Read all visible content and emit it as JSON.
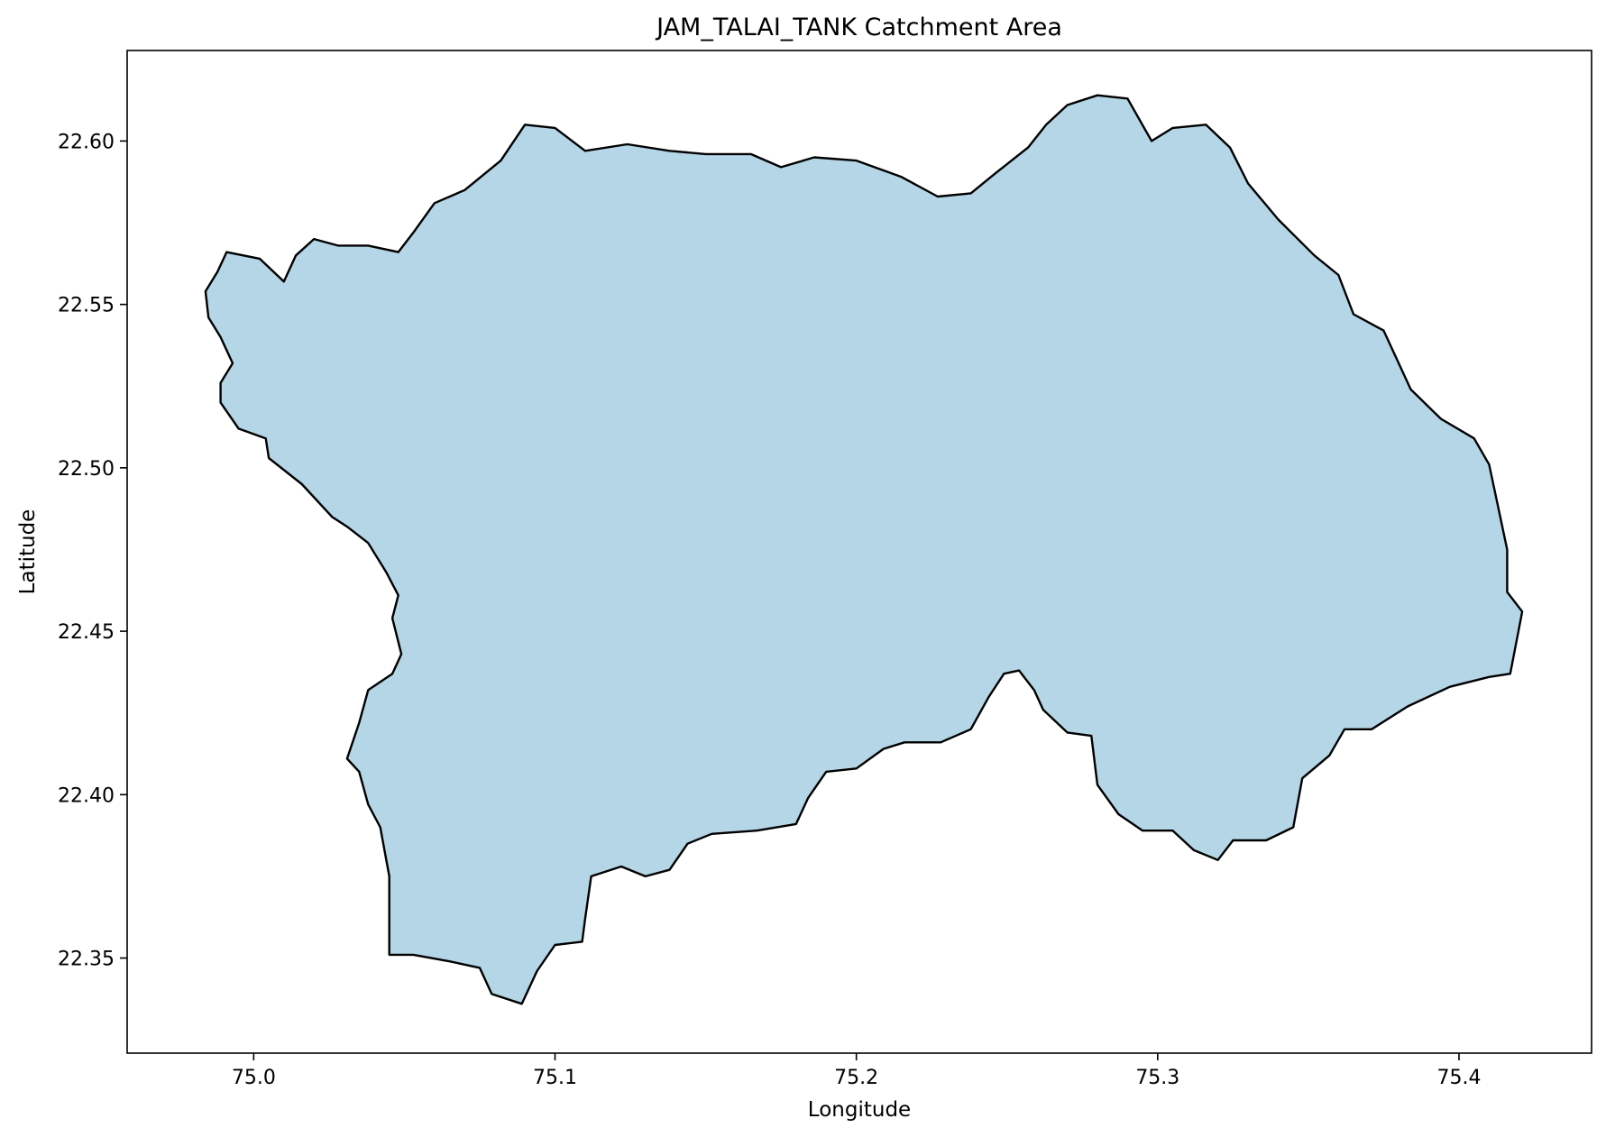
{
  "title": "JAM_TALAI_TANK Catchment Area",
  "x_axis": {
    "label": "Longitude",
    "range": [
      74.958,
      75.444
    ],
    "ticks": [
      {
        "value": 75.0,
        "label": "75.0"
      },
      {
        "value": 75.1,
        "label": "75.1"
      },
      {
        "value": 75.2,
        "label": "75.2"
      },
      {
        "value": 75.3,
        "label": "75.3"
      },
      {
        "value": 75.4,
        "label": "75.4"
      }
    ]
  },
  "y_axis": {
    "label": "Latitude",
    "range": [
      22.3209,
      22.6277
    ],
    "ticks": [
      {
        "value": 22.35,
        "label": "22.35"
      },
      {
        "value": 22.4,
        "label": "22.40"
      },
      {
        "value": 22.45,
        "label": "22.45"
      },
      {
        "value": 22.5,
        "label": "22.50"
      },
      {
        "value": 22.55,
        "label": "22.55"
      },
      {
        "value": 22.6,
        "label": "22.60"
      }
    ]
  },
  "grid": false,
  "colors": {
    "fill": "#b4d6e6",
    "outline": "#000000",
    "background": "#ffffff"
  },
  "map_data": {
    "feature": "catchment-boundary",
    "crs_units": "degrees",
    "boundary": [
      [
        74.984,
        22.554
      ],
      [
        74.988,
        22.56
      ],
      [
        74.991,
        22.566
      ],
      [
        75.002,
        22.564
      ],
      [
        75.01,
        22.557
      ],
      [
        75.014,
        22.565
      ],
      [
        75.02,
        22.57
      ],
      [
        75.028,
        22.568
      ],
      [
        75.038,
        22.568
      ],
      [
        75.048,
        22.566
      ],
      [
        75.053,
        22.572
      ],
      [
        75.06,
        22.581
      ],
      [
        75.07,
        22.585
      ],
      [
        75.082,
        22.594
      ],
      [
        75.09,
        22.605
      ],
      [
        75.1,
        22.604
      ],
      [
        75.11,
        22.597
      ],
      [
        75.124,
        22.599
      ],
      [
        75.138,
        22.597
      ],
      [
        75.15,
        22.596
      ],
      [
        75.165,
        22.596
      ],
      [
        75.175,
        22.592
      ],
      [
        75.186,
        22.595
      ],
      [
        75.2,
        22.594
      ],
      [
        75.215,
        22.589
      ],
      [
        75.227,
        22.583
      ],
      [
        75.238,
        22.584
      ],
      [
        75.246,
        22.59
      ],
      [
        75.257,
        22.598
      ],
      [
        75.263,
        22.605
      ],
      [
        75.27,
        22.611
      ],
      [
        75.28,
        22.614
      ],
      [
        75.29,
        22.613
      ],
      [
        75.298,
        22.6
      ],
      [
        75.305,
        22.604
      ],
      [
        75.316,
        22.605
      ],
      [
        75.324,
        22.598
      ],
      [
        75.33,
        22.587
      ],
      [
        75.34,
        22.576
      ],
      [
        75.352,
        22.565
      ],
      [
        75.36,
        22.559
      ],
      [
        75.365,
        22.547
      ],
      [
        75.375,
        22.542
      ],
      [
        75.384,
        22.524
      ],
      [
        75.394,
        22.515
      ],
      [
        75.405,
        22.509
      ],
      [
        75.41,
        22.501
      ],
      [
        75.413,
        22.488
      ],
      [
        75.416,
        22.475
      ],
      [
        75.416,
        22.462
      ],
      [
        75.421,
        22.456
      ],
      [
        75.417,
        22.437
      ],
      [
        75.41,
        22.436
      ],
      [
        75.397,
        22.433
      ],
      [
        75.383,
        22.427
      ],
      [
        75.371,
        22.42
      ],
      [
        75.362,
        22.42
      ],
      [
        75.357,
        22.412
      ],
      [
        75.348,
        22.405
      ],
      [
        75.345,
        22.39
      ],
      [
        75.336,
        22.386
      ],
      [
        75.325,
        22.386
      ],
      [
        75.32,
        22.38
      ],
      [
        75.312,
        22.383
      ],
      [
        75.305,
        22.389
      ],
      [
        75.295,
        22.389
      ],
      [
        75.287,
        22.394
      ],
      [
        75.28,
        22.403
      ],
      [
        75.278,
        22.418
      ],
      [
        75.27,
        22.419
      ],
      [
        75.262,
        22.426
      ],
      [
        75.259,
        22.432
      ],
      [
        75.254,
        22.438
      ],
      [
        75.249,
        22.437
      ],
      [
        75.244,
        22.43
      ],
      [
        75.238,
        22.42
      ],
      [
        75.228,
        22.416
      ],
      [
        75.216,
        22.416
      ],
      [
        75.209,
        22.414
      ],
      [
        75.2,
        22.408
      ],
      [
        75.19,
        22.407
      ],
      [
        75.184,
        22.399
      ],
      [
        75.18,
        22.391
      ],
      [
        75.167,
        22.389
      ],
      [
        75.152,
        22.388
      ],
      [
        75.144,
        22.385
      ],
      [
        75.138,
        22.377
      ],
      [
        75.13,
        22.375
      ],
      [
        75.122,
        22.378
      ],
      [
        75.112,
        22.375
      ],
      [
        75.11,
        22.362
      ],
      [
        75.109,
        22.355
      ],
      [
        75.1,
        22.354
      ],
      [
        75.094,
        22.346
      ],
      [
        75.089,
        22.336
      ],
      [
        75.079,
        22.339
      ],
      [
        75.075,
        22.347
      ],
      [
        75.065,
        22.349
      ],
      [
        75.053,
        22.351
      ],
      [
        75.045,
        22.351
      ],
      [
        75.045,
        22.362
      ],
      [
        75.045,
        22.375
      ],
      [
        75.042,
        22.39
      ],
      [
        75.038,
        22.397
      ],
      [
        75.035,
        22.407
      ],
      [
        75.031,
        22.411
      ],
      [
        75.035,
        22.422
      ],
      [
        75.038,
        22.432
      ],
      [
        75.046,
        22.437
      ],
      [
        75.049,
        22.443
      ],
      [
        75.046,
        22.454
      ],
      [
        75.048,
        22.461
      ],
      [
        75.044,
        22.468
      ],
      [
        75.038,
        22.477
      ],
      [
        75.031,
        22.482
      ],
      [
        75.026,
        22.485
      ],
      [
        75.016,
        22.495
      ],
      [
        75.005,
        22.503
      ],
      [
        75.004,
        22.509
      ],
      [
        74.995,
        22.512
      ],
      [
        74.989,
        22.52
      ],
      [
        74.989,
        22.526
      ],
      [
        74.993,
        22.532
      ],
      [
        74.989,
        22.54
      ],
      [
        74.985,
        22.546
      ],
      [
        74.984,
        22.554
      ]
    ]
  }
}
